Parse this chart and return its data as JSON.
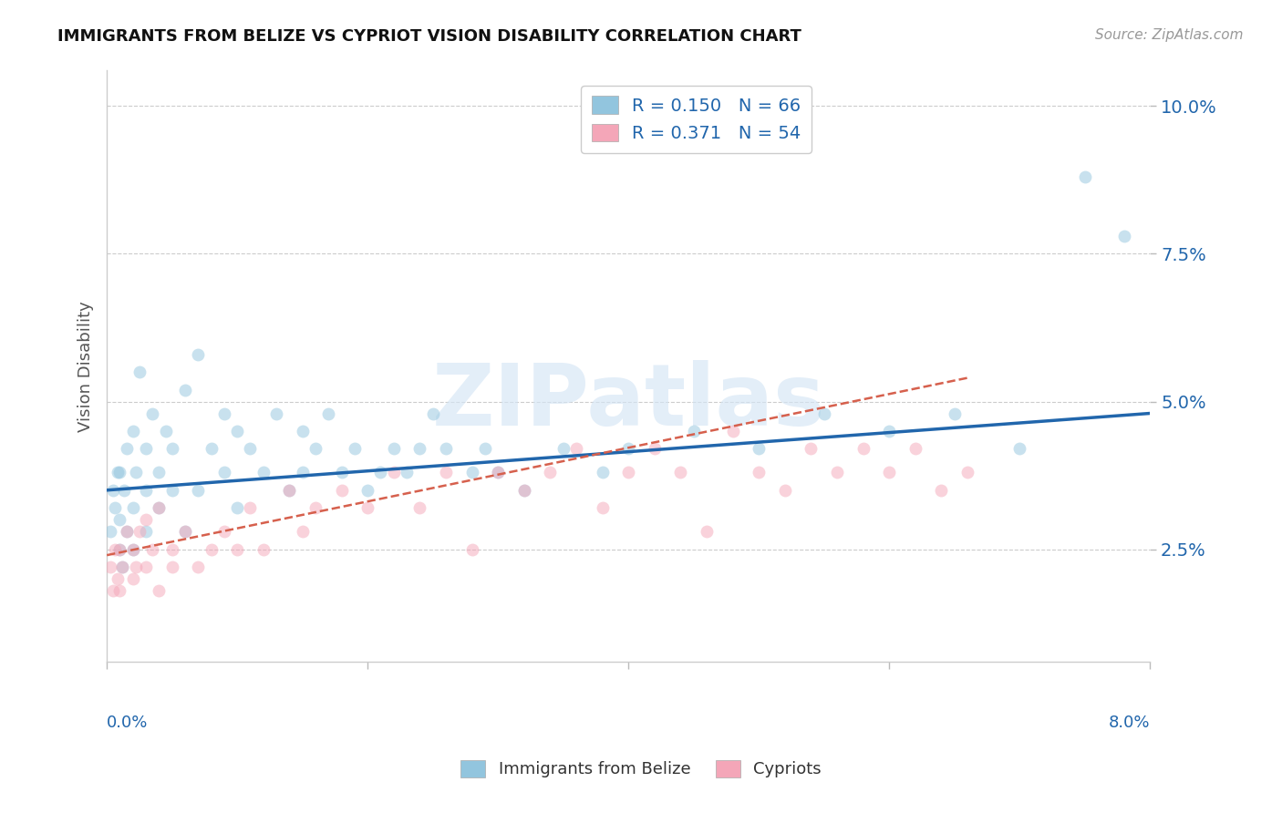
{
  "title": "IMMIGRANTS FROM BELIZE VS CYPRIOT VISION DISABILITY CORRELATION CHART",
  "source": "Source: ZipAtlas.com",
  "ylabel": "Vision Disability",
  "y_ticks": [
    0.025,
    0.05,
    0.075,
    0.1
  ],
  "y_tick_labels": [
    "2.5%",
    "5.0%",
    "7.5%",
    "10.0%"
  ],
  "x_min": 0.0,
  "x_max": 0.08,
  "y_min": 0.006,
  "y_max": 0.106,
  "blue_R": 0.15,
  "blue_N": 66,
  "pink_R": 0.371,
  "pink_N": 54,
  "blue_color": "#92c5de",
  "pink_color": "#f4a6b8",
  "blue_line_color": "#2166ac",
  "pink_line_color": "#d6604d",
  "blue_scatter_x": [
    0.0003,
    0.0005,
    0.0006,
    0.0008,
    0.001,
    0.001,
    0.001,
    0.0012,
    0.0013,
    0.0015,
    0.0015,
    0.002,
    0.002,
    0.002,
    0.0022,
    0.0025,
    0.003,
    0.003,
    0.003,
    0.0035,
    0.004,
    0.004,
    0.0045,
    0.005,
    0.005,
    0.006,
    0.006,
    0.007,
    0.007,
    0.008,
    0.009,
    0.009,
    0.01,
    0.01,
    0.011,
    0.012,
    0.013,
    0.014,
    0.015,
    0.015,
    0.016,
    0.017,
    0.018,
    0.019,
    0.02,
    0.021,
    0.022,
    0.023,
    0.024,
    0.025,
    0.026,
    0.028,
    0.029,
    0.03,
    0.032,
    0.035,
    0.038,
    0.04,
    0.045,
    0.05,
    0.055,
    0.06,
    0.065,
    0.07,
    0.075,
    0.078
  ],
  "blue_scatter_y": [
    0.028,
    0.035,
    0.032,
    0.038,
    0.025,
    0.03,
    0.038,
    0.022,
    0.035,
    0.028,
    0.042,
    0.025,
    0.032,
    0.045,
    0.038,
    0.055,
    0.028,
    0.035,
    0.042,
    0.048,
    0.032,
    0.038,
    0.045,
    0.035,
    0.042,
    0.028,
    0.052,
    0.035,
    0.058,
    0.042,
    0.038,
    0.048,
    0.032,
    0.045,
    0.042,
    0.038,
    0.048,
    0.035,
    0.038,
    0.045,
    0.042,
    0.048,
    0.038,
    0.042,
    0.035,
    0.038,
    0.042,
    0.038,
    0.042,
    0.048,
    0.042,
    0.038,
    0.042,
    0.038,
    0.035,
    0.042,
    0.038,
    0.042,
    0.045,
    0.042,
    0.048,
    0.045,
    0.048,
    0.042,
    0.088,
    0.078
  ],
  "pink_scatter_x": [
    0.0003,
    0.0005,
    0.0006,
    0.0008,
    0.001,
    0.001,
    0.0012,
    0.0015,
    0.002,
    0.002,
    0.0022,
    0.0025,
    0.003,
    0.003,
    0.0035,
    0.004,
    0.004,
    0.005,
    0.005,
    0.006,
    0.007,
    0.008,
    0.009,
    0.01,
    0.011,
    0.012,
    0.014,
    0.015,
    0.016,
    0.018,
    0.02,
    0.022,
    0.024,
    0.026,
    0.028,
    0.03,
    0.032,
    0.034,
    0.036,
    0.038,
    0.04,
    0.042,
    0.044,
    0.046,
    0.048,
    0.05,
    0.052,
    0.054,
    0.056,
    0.058,
    0.06,
    0.062,
    0.064,
    0.066
  ],
  "pink_scatter_y": [
    0.022,
    0.018,
    0.025,
    0.02,
    0.018,
    0.025,
    0.022,
    0.028,
    0.02,
    0.025,
    0.022,
    0.028,
    0.022,
    0.03,
    0.025,
    0.018,
    0.032,
    0.022,
    0.025,
    0.028,
    0.022,
    0.025,
    0.028,
    0.025,
    0.032,
    0.025,
    0.035,
    0.028,
    0.032,
    0.035,
    0.032,
    0.038,
    0.032,
    0.038,
    0.025,
    0.038,
    0.035,
    0.038,
    0.042,
    0.032,
    0.038,
    0.042,
    0.038,
    0.028,
    0.045,
    0.038,
    0.035,
    0.042,
    0.038,
    0.042,
    0.038,
    0.042,
    0.035,
    0.038
  ],
  "blue_line_x0": 0.0,
  "blue_line_x1": 0.08,
  "blue_line_y0": 0.035,
  "blue_line_y1": 0.048,
  "pink_line_x0": 0.0,
  "pink_line_x1": 0.066,
  "pink_line_y0": 0.024,
  "pink_line_y1": 0.054
}
